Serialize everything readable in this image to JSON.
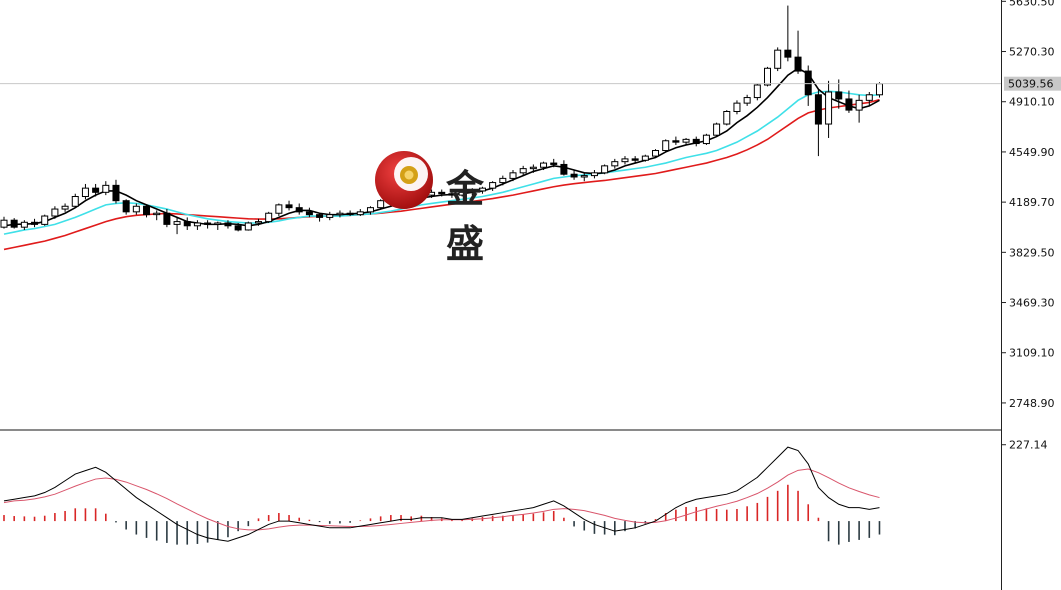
{
  "watermark": {
    "brand": "金盛",
    "circle_color": "#c41a1a",
    "coin_color": "#d4a017"
  },
  "colors": {
    "bull_candle": "#ffffff",
    "bear_candle": "#000000",
    "candle_outline": "#000000",
    "ma_fast": "#000000",
    "ma_mid": "#3fe0e8",
    "ma_slow": "#e01b1b",
    "macd_line": "#000000",
    "signal_line": "#d9566c",
    "hist_pos": "#d92525",
    "hist_neg": "#2b3a42"
  },
  "chart_data": [
    {
      "type": "candlestick",
      "panel": "price",
      "y_ticks": [
        "5630.50",
        "5270.30",
        "4910.10",
        "4549.90",
        "4189.70",
        "3829.50",
        "3469.30",
        "3109.10",
        "2748.90"
      ],
      "ylim": [
        2569,
        5640
      ],
      "current_price": "5039.56",
      "current_value": 5039.56,
      "grid": false,
      "series": [
        {
          "name": "MA-fast",
          "color_key": "ma_fast"
        },
        {
          "name": "MA-mid",
          "color_key": "ma_mid"
        },
        {
          "name": "MA-slow",
          "color_key": "ma_slow"
        }
      ],
      "candles": [
        [
          4010,
          4085,
          4000,
          4060
        ],
        [
          4060,
          4075,
          4000,
          4010
        ],
        [
          4010,
          4060,
          3990,
          4045
        ],
        [
          4045,
          4070,
          4010,
          4030
        ],
        [
          4030,
          4100,
          4020,
          4090
        ],
        [
          4090,
          4160,
          4070,
          4140
        ],
        [
          4140,
          4180,
          4120,
          4160
        ],
        [
          4160,
          4250,
          4150,
          4230
        ],
        [
          4230,
          4320,
          4210,
          4290
        ],
        [
          4290,
          4320,
          4230,
          4260
        ],
        [
          4260,
          4340,
          4240,
          4310
        ],
        [
          4310,
          4350,
          4180,
          4200
        ],
        [
          4200,
          4210,
          4100,
          4120
        ],
        [
          4120,
          4180,
          4100,
          4160
        ],
        [
          4160,
          4170,
          4080,
          4100
        ],
        [
          4100,
          4130,
          4060,
          4110
        ],
        [
          4110,
          4140,
          4010,
          4030
        ],
        [
          4030,
          4080,
          3960,
          4050
        ],
        [
          4050,
          4080,
          3990,
          4020
        ],
        [
          4020,
          4060,
          3990,
          4040
        ],
        [
          4040,
          4060,
          4000,
          4030
        ],
        [
          4030,
          4050,
          3990,
          4040
        ],
        [
          4040,
          4060,
          4000,
          4020
        ],
        [
          4020,
          4040,
          3980,
          3990
        ],
        [
          3990,
          4050,
          3985,
          4040
        ],
        [
          4040,
          4070,
          4020,
          4050
        ],
        [
          4050,
          4120,
          4040,
          4110
        ],
        [
          4110,
          4180,
          4090,
          4170
        ],
        [
          4170,
          4200,
          4130,
          4150
        ],
        [
          4150,
          4180,
          4100,
          4120
        ],
        [
          4120,
          4150,
          4080,
          4100
        ],
        [
          4100,
          4110,
          4050,
          4080
        ],
        [
          4080,
          4120,
          4060,
          4100
        ],
        [
          4100,
          4130,
          4080,
          4110
        ],
        [
          4110,
          4130,
          4090,
          4100
        ],
        [
          4100,
          4140,
          4090,
          4120
        ],
        [
          4120,
          4160,
          4100,
          4150
        ],
        [
          4150,
          4210,
          4140,
          4200
        ],
        [
          4200,
          4240,
          4180,
          4220
        ],
        [
          4220,
          4260,
          4200,
          4230
        ],
        [
          4230,
          4260,
          4200,
          4210
        ],
        [
          4210,
          4250,
          4190,
          4240
        ],
        [
          4240,
          4280,
          4220,
          4260
        ],
        [
          4260,
          4280,
          4230,
          4250
        ],
        [
          4250,
          4270,
          4220,
          4240
        ],
        [
          4240,
          4270,
          4230,
          4260
        ],
        [
          4260,
          4290,
          4240,
          4270
        ],
        [
          4270,
          4300,
          4250,
          4290
        ],
        [
          4290,
          4340,
          4270,
          4330
        ],
        [
          4330,
          4380,
          4310,
          4360
        ],
        [
          4360,
          4420,
          4340,
          4400
        ],
        [
          4400,
          4450,
          4380,
          4430
        ],
        [
          4430,
          4460,
          4400,
          4440
        ],
        [
          4440,
          4480,
          4420,
          4470
        ],
        [
          4470,
          4500,
          4440,
          4460
        ],
        [
          4460,
          4490,
          4380,
          4390
        ],
        [
          4390,
          4420,
          4350,
          4370
        ],
        [
          4370,
          4400,
          4340,
          4380
        ],
        [
          4380,
          4420,
          4360,
          4400
        ],
        [
          4400,
          4460,
          4390,
          4450
        ],
        [
          4450,
          4500,
          4430,
          4480
        ],
        [
          4480,
          4520,
          4460,
          4500
        ],
        [
          4500,
          4520,
          4470,
          4490
        ],
        [
          4490,
          4530,
          4480,
          4520
        ],
        [
          4520,
          4570,
          4510,
          4560
        ],
        [
          4560,
          4640,
          4550,
          4630
        ],
        [
          4630,
          4660,
          4600,
          4620
        ],
        [
          4620,
          4650,
          4600,
          4640
        ],
        [
          4640,
          4660,
          4590,
          4610
        ],
        [
          4610,
          4680,
          4600,
          4670
        ],
        [
          4670,
          4760,
          4660,
          4750
        ],
        [
          4750,
          4850,
          4740,
          4840
        ],
        [
          4840,
          4920,
          4820,
          4900
        ],
        [
          4900,
          4960,
          4880,
          4940
        ],
        [
          4940,
          5040,
          4920,
          5030
        ],
        [
          5030,
          5160,
          5020,
          5150
        ],
        [
          5150,
          5300,
          5130,
          5280
        ],
        [
          5280,
          5600,
          5200,
          5230
        ],
        [
          5230,
          5420,
          5110,
          5130
        ],
        [
          5130,
          5170,
          4880,
          4960
        ],
        [
          4960,
          5000,
          4520,
          4750
        ],
        [
          4750,
          5060,
          4650,
          4980
        ],
        [
          4980,
          5070,
          4860,
          4930
        ],
        [
          4930,
          4990,
          4830,
          4850
        ],
        [
          4850,
          4960,
          4760,
          4920
        ],
        [
          4920,
          4980,
          4880,
          4960
        ],
        [
          4960,
          5050,
          4940,
          5039.56
        ]
      ],
      "ma_fast": [
        4020,
        4030,
        4032,
        4035,
        4050,
        4080,
        4110,
        4150,
        4200,
        4240,
        4270,
        4270,
        4240,
        4200,
        4170,
        4140,
        4110,
        4080,
        4050,
        4040,
        4030,
        4030,
        4035,
        4030,
        4020,
        4030,
        4050,
        4080,
        4110,
        4130,
        4130,
        4110,
        4100,
        4100,
        4105,
        4110,
        4120,
        4140,
        4160,
        4180,
        4200,
        4220,
        4230,
        4240,
        4245,
        4250,
        4260,
        4270,
        4290,
        4320,
        4350,
        4380,
        4410,
        4430,
        4450,
        4440,
        4420,
        4400,
        4395,
        4400,
        4420,
        4450,
        4470,
        4490,
        4510,
        4550,
        4580,
        4600,
        4615,
        4630,
        4660,
        4700,
        4760,
        4810,
        4870,
        4940,
        5020,
        5100,
        5150,
        5110,
        5000,
        4940,
        4910,
        4880,
        4860,
        4880,
        4920
      ],
      "ma_mid": [
        3960,
        3975,
        3990,
        4000,
        4015,
        4030,
        4055,
        4080,
        4110,
        4140,
        4170,
        4180,
        4185,
        4180,
        4170,
        4155,
        4140,
        4120,
        4100,
        4085,
        4070,
        4060,
        4050,
        4045,
        4040,
        4040,
        4045,
        4055,
        4070,
        4080,
        4090,
        4090,
        4090,
        4090,
        4095,
        4100,
        4105,
        4115,
        4125,
        4140,
        4155,
        4170,
        4180,
        4190,
        4200,
        4210,
        4220,
        4230,
        4245,
        4260,
        4280,
        4300,
        4320,
        4340,
        4360,
        4370,
        4380,
        4385,
        4390,
        4400,
        4410,
        4420,
        4430,
        4440,
        4455,
        4470,
        4490,
        4510,
        4525,
        4540,
        4560,
        4590,
        4620,
        4660,
        4700,
        4750,
        4800,
        4860,
        4920,
        4960,
        4980,
        4985,
        4980,
        4970,
        4960,
        4955,
        4960
      ],
      "ma_slow": [
        3850,
        3865,
        3880,
        3895,
        3910,
        3930,
        3950,
        3975,
        4000,
        4025,
        4050,
        4070,
        4085,
        4095,
        4100,
        4105,
        4108,
        4105,
        4100,
        4095,
        4090,
        4085,
        4080,
        4075,
        4070,
        4068,
        4068,
        4070,
        4075,
        4080,
        4085,
        4088,
        4090,
        4092,
        4095,
        4100,
        4105,
        4110,
        4118,
        4125,
        4135,
        4145,
        4155,
        4165,
        4175,
        4185,
        4195,
        4205,
        4215,
        4228,
        4240,
        4255,
        4270,
        4285,
        4300,
        4312,
        4322,
        4330,
        4338,
        4345,
        4355,
        4365,
        4375,
        4385,
        4395,
        4410,
        4425,
        4440,
        4455,
        4470,
        4490,
        4510,
        4535,
        4565,
        4600,
        4640,
        4690,
        4740,
        4790,
        4830,
        4850,
        4865,
        4875,
        4885,
        4895,
        4905,
        4925
      ]
    },
    {
      "type": "macd",
      "panel": "oscillator",
      "y_ticks": [
        "227.14"
      ],
      "ylim": [
        -205,
        265
      ],
      "series": [
        {
          "name": "MACD",
          "color_key": "macd_line"
        },
        {
          "name": "Signal",
          "color_key": "signal_line"
        }
      ],
      "macd": [
        60,
        65,
        70,
        75,
        85,
        100,
        120,
        140,
        150,
        160,
        145,
        120,
        95,
        70,
        50,
        30,
        10,
        -10,
        -25,
        -40,
        -50,
        -55,
        -60,
        -50,
        -40,
        -25,
        -10,
        0,
        0,
        -5,
        -10,
        -15,
        -20,
        -20,
        -20,
        -15,
        -10,
        -5,
        0,
        5,
        5,
        10,
        10,
        10,
        5,
        5,
        10,
        15,
        20,
        25,
        30,
        35,
        40,
        50,
        60,
        45,
        25,
        5,
        -10,
        -20,
        -30,
        -25,
        -20,
        -10,
        0,
        20,
        40,
        55,
        65,
        70,
        75,
        80,
        90,
        110,
        130,
        160,
        190,
        220,
        210,
        170,
        100,
        70,
        50,
        40,
        40,
        35,
        40
      ],
      "signal": [
        55,
        60,
        62,
        66,
        72,
        80,
        92,
        104,
        115,
        125,
        128,
        124,
        116,
        105,
        94,
        81,
        67,
        51,
        36,
        21,
        7,
        -5,
        -16,
        -23,
        -26,
        -26,
        -23,
        -18,
        -14,
        -12,
        -12,
        -13,
        -14,
        -15,
        -16,
        -16,
        -15,
        -13,
        -10,
        -7,
        -4,
        -1,
        2,
        4,
        4,
        4,
        5,
        7,
        10,
        13,
        17,
        20,
        24,
        29,
        35,
        37,
        35,
        31,
        24,
        17,
        8,
        2,
        -3,
        -5,
        -4,
        1,
        9,
        18,
        28,
        36,
        44,
        51,
        59,
        70,
        82,
        98,
        116,
        137,
        151,
        155,
        144,
        129,
        113,
        99,
        88,
        78,
        70
      ],
      "histogram": [
        18,
        15,
        14,
        13,
        16,
        24,
        30,
        38,
        38,
        38,
        22,
        -4,
        -25,
        -40,
        -50,
        -58,
        -65,
        -70,
        -70,
        -68,
        -64,
        -56,
        -48,
        -30,
        -15,
        8,
        18,
        24,
        18,
        10,
        4,
        -3,
        -8,
        -7,
        -5,
        2,
        8,
        14,
        18,
        18,
        14,
        16,
        12,
        8,
        3,
        3,
        8,
        12,
        16,
        16,
        18,
        20,
        22,
        26,
        30,
        10,
        -16,
        -28,
        -38,
        -40,
        -42,
        -30,
        -22,
        -8,
        6,
        24,
        34,
        42,
        42,
        38,
        36,
        34,
        36,
        44,
        54,
        72,
        90,
        108,
        90,
        50,
        10,
        -60,
        -70,
        -62,
        -56,
        -50,
        -40
      ]
    }
  ]
}
